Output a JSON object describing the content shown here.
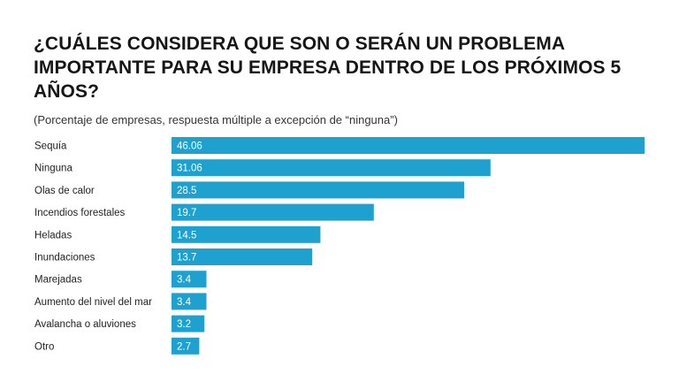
{
  "chart_data": {
    "type": "bar",
    "orientation": "horizontal",
    "title": "¿CUÁLES CONSIDERA QUE SON O SERÁN UN PROBLEMA IMPORTANTE PARA SU EMPRESA DENTRO DE LOS PRÓXIMOS 5 AÑOS?",
    "subtitle": "(Porcentaje de empresas, respuesta múltiple a excepción de “ninguna”)",
    "categories": [
      "Sequía",
      "Ninguna",
      "Olas de calor",
      "Incendios forestales",
      "Heladas",
      "Inundaciones",
      "Marejadas",
      "Aumento del nivel del mar",
      "Avalancha o aluviones",
      "Otro"
    ],
    "values": [
      46.06,
      31.06,
      28.5,
      19.7,
      14.5,
      13.7,
      3.4,
      3.4,
      3.2,
      2.7
    ],
    "value_labels": [
      "46.06",
      "31.06",
      "28.5",
      "19.7",
      "14.5",
      "13.7",
      "3.4",
      "3.4",
      "3.2",
      "2.7"
    ],
    "xlim": [
      0,
      46.06
    ],
    "bar_color": "#1ea1cf",
    "grid": false,
    "legend": "none"
  }
}
